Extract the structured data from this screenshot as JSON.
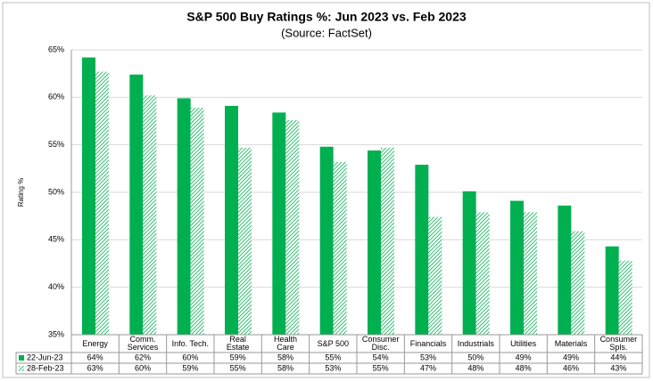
{
  "chart_data": {
    "type": "bar",
    "title": "S&P 500 Buy Ratings %:  Jun 2023 vs. Feb 2023",
    "subtitle": "(Source: FactSet)",
    "y_label": "Rating %",
    "categories": [
      "Energy",
      "Comm.\nServices",
      "Info. Tech.",
      "Real\nEstate",
      "Health\nCare",
      "S&P 500",
      "Consumer\nDisc.",
      "Financials",
      "Industrials",
      "Utilities",
      "Materials",
      "Consumer\nSpls."
    ],
    "series": [
      {
        "name": "22-Jun-23",
        "color": "#00b050",
        "pattern": "solid",
        "values": [
          64.2,
          62.4,
          59.9,
          59.1,
          58.4,
          54.8,
          54.4,
          52.9,
          50.1,
          49.1,
          48.6,
          44.3
        ],
        "value_labels": [
          "64%",
          "62%",
          "60%",
          "59%",
          "58%",
          "55%",
          "54%",
          "53%",
          "50%",
          "49%",
          "49%",
          "44%"
        ]
      },
      {
        "name": "28-Feb-23",
        "color": "#00b050",
        "pattern": "hatched",
        "values": [
          62.7,
          60.2,
          58.9,
          54.7,
          57.6,
          53.2,
          54.7,
          47.4,
          47.9,
          47.9,
          45.9,
          42.8
        ],
        "value_labels": [
          "63%",
          "60%",
          "59%",
          "55%",
          "58%",
          "53%",
          "55%",
          "47%",
          "48%",
          "48%",
          "46%",
          "43%"
        ]
      }
    ],
    "ylim": [
      35,
      65
    ],
    "yticks": [
      {
        "value": 35,
        "label": "35%"
      },
      {
        "value": 40,
        "label": "40%"
      },
      {
        "value": 45,
        "label": "45%"
      },
      {
        "value": 50,
        "label": "50%"
      },
      {
        "value": 55,
        "label": "55%"
      },
      {
        "value": 60,
        "label": "60%"
      },
      {
        "value": 65,
        "label": "65%"
      }
    ],
    "grid": true
  }
}
